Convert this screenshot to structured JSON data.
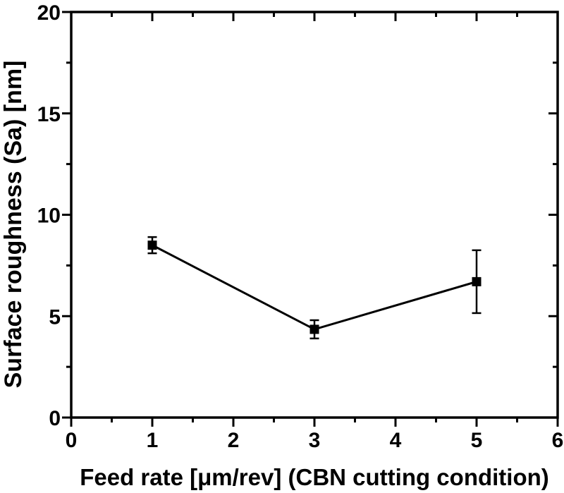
{
  "chart_data": {
    "type": "line",
    "title": "",
    "xlabel": "Feed rate [μm/rev] (CBN cutting condition)",
    "ylabel": "Surface roughness (Sa) [nm]",
    "xlim": [
      0,
      6
    ],
    "ylim": [
      0,
      20
    ],
    "x_major_ticks": [
      0,
      1,
      2,
      3,
      4,
      5,
      6
    ],
    "x_major_tick_labels": [
      "0",
      "1",
      "2",
      "3",
      "4",
      "5",
      "6"
    ],
    "x_minor_ticks": [
      0.5,
      1.5,
      2.5,
      3.5,
      4.5,
      5.5
    ],
    "y_major_ticks": [
      0,
      5,
      10,
      15,
      20
    ],
    "y_major_tick_labels": [
      "0",
      "5",
      "10",
      "15",
      "20"
    ],
    "y_minor_ticks": [
      2.5,
      7.5,
      12.5,
      17.5
    ],
    "grid": false,
    "legend": null,
    "frame": "box",
    "tick_style": "left-bottom-out-top-right-in",
    "background": "#ffffff",
    "axis_color": "#000000",
    "text_color": "#000000",
    "series": [
      {
        "name": "Surface roughness (Sa)",
        "x": [
          1,
          3,
          5
        ],
        "y": [
          8.5,
          4.35,
          6.7
        ],
        "yerr": [
          0.4,
          0.45,
          1.55
        ],
        "marker": "filled-square",
        "color": "#000000"
      }
    ]
  }
}
